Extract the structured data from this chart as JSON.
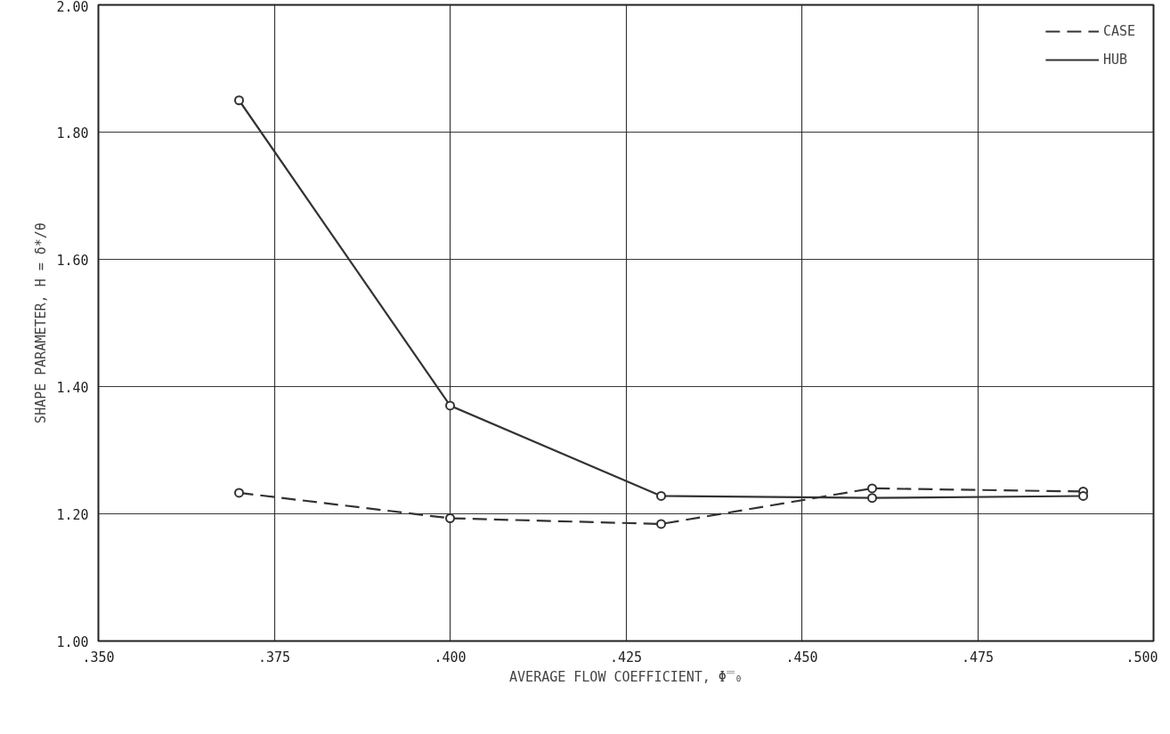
{
  "chart_data": {
    "type": "line",
    "xlabel": "AVERAGE FLOW COEFFICIENT, Φ̿₀",
    "ylabel": "SHAPE PARAMETER, H = δ*/θ",
    "x": [
      0.37,
      0.4,
      0.43,
      0.46,
      0.49
    ],
    "series": [
      {
        "name": "CASE",
        "color": "#333333",
        "line_style": "dashed",
        "values": [
          1.233,
          1.193,
          1.184,
          1.24,
          1.235
        ]
      },
      {
        "name": "HUB",
        "color": "#333333",
        "line_style": "solid",
        "values": [
          1.85,
          1.37,
          1.228,
          1.225,
          1.228
        ]
      }
    ],
    "xlim": [
      0.35,
      0.5
    ],
    "ylim": [
      1.0,
      2.0
    ],
    "xticks": [
      {
        "value": 0.35,
        "label": ".350"
      },
      {
        "value": 0.375,
        "label": ".375"
      },
      {
        "value": 0.4,
        "label": ".400"
      },
      {
        "value": 0.425,
        "label": ".425"
      },
      {
        "value": 0.45,
        "label": ".450"
      },
      {
        "value": 0.475,
        "label": ".475"
      },
      {
        "value": 0.5,
        "label": ".500"
      }
    ],
    "yticks": [
      {
        "value": 1.0,
        "label": "1.00"
      },
      {
        "value": 1.2,
        "label": "1.20"
      },
      {
        "value": 1.4,
        "label": "1.40"
      },
      {
        "value": 1.6,
        "label": "1.60"
      },
      {
        "value": 1.8,
        "label": "1.80"
      },
      {
        "value": 2.0,
        "label": "2.00"
      }
    ],
    "grid": true,
    "legend": "top right",
    "marker": "circle"
  }
}
